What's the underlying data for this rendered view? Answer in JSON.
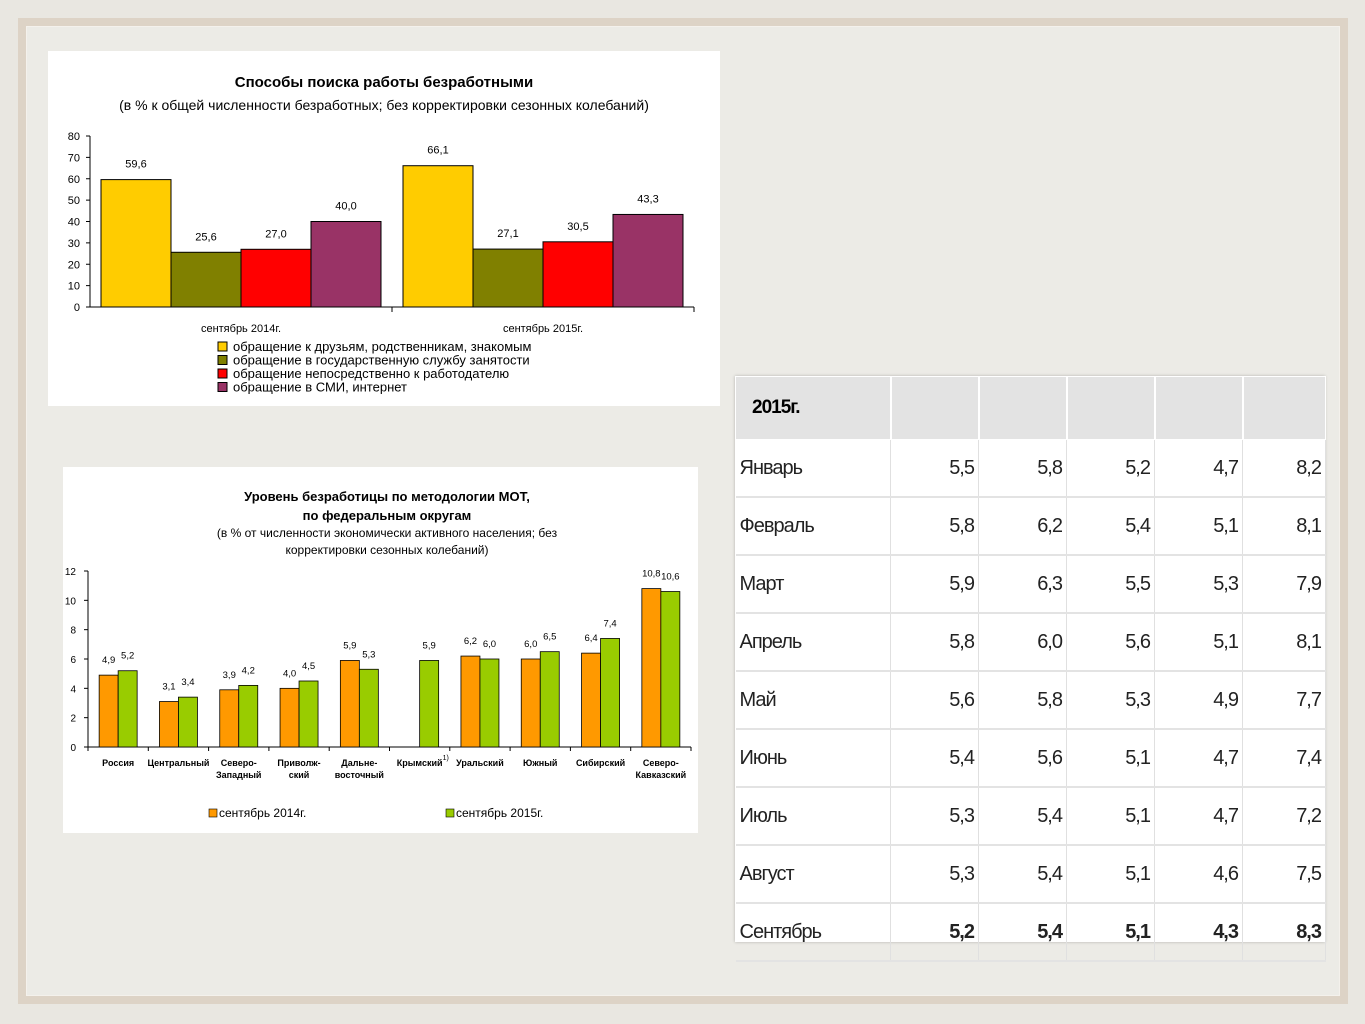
{
  "chart_data": [
    {
      "type": "bar",
      "title": "Способы поиска работы безработными",
      "subtitle": "(в % к общей численности безработных; без корректировки сезонных колебаний)",
      "categories": [
        "сентябрь 2014г.",
        "сентябрь 2015г."
      ],
      "ylim": [
        0,
        80
      ],
      "yticks": [
        0,
        10,
        20,
        30,
        40,
        50,
        60,
        70,
        80
      ],
      "legend_position": "bottom",
      "series": [
        {
          "name": "обращение к друзьям, родственникам, знакомым",
          "values": [
            59.6,
            66.1
          ],
          "labels": [
            "59,6",
            "66,1"
          ],
          "color": "#ffcc00"
        },
        {
          "name": "обращение в государственную службу занятости",
          "values": [
            25.6,
            27.1
          ],
          "labels": [
            "25,6",
            "27,1"
          ],
          "color": "#808000"
        },
        {
          "name": "обращение непосредственно к работодателю",
          "values": [
            27.0,
            30.5
          ],
          "labels": [
            "27,0",
            "30,5"
          ],
          "color": "#ff0000"
        },
        {
          "name": "обращение в СМИ, интернет",
          "values": [
            40.0,
            43.3
          ],
          "labels": [
            "40,0",
            "43,3"
          ],
          "color": "#993366"
        }
      ]
    },
    {
      "type": "bar",
      "title": "Уровень безработицы по методологии МОТ,",
      "title2": "по федеральным округам",
      "subtitle": "(в % от численности экономически активного населения; без",
      "subtitle2": "корректировки сезонных колебаний)",
      "categories": [
        "Россия",
        "Центральный",
        "Северо-|Западный",
        "Приволж-|ский",
        "Дальне-|восточный",
        "Крымский",
        "Уральский",
        "Южный",
        "Сибирский",
        "Северо-|Кавказский"
      ],
      "crimea_footnote": "1)",
      "ylim": [
        0,
        12
      ],
      "yticks": [
        0,
        2,
        4,
        6,
        8,
        10,
        12
      ],
      "legend_position": "bottom",
      "series": [
        {
          "name": "сентябрь 2014г.",
          "values": [
            4.9,
            3.1,
            3.9,
            4.0,
            5.9,
            null,
            6.2,
            6.0,
            6.4,
            10.8
          ],
          "labels": [
            "4,9",
            "3,1",
            "3,9",
            "4,0",
            "5,9",
            "",
            "6,2",
            "6,0",
            "6,4",
            "10,8"
          ],
          "color": "#ff9900"
        },
        {
          "name": "сентябрь 2015г.",
          "values": [
            5.2,
            3.4,
            4.2,
            4.5,
            5.3,
            5.9,
            6.0,
            6.5,
            7.4,
            10.6
          ],
          "labels": [
            "5,2",
            "3,4",
            "4,2",
            "4,5",
            "5,3",
            "5,9",
            "6,0",
            "6,5",
            "7,4",
            "10,6"
          ],
          "color": "#99cc00"
        }
      ]
    },
    {
      "type": "table",
      "header": "2015г.",
      "rows": [
        {
          "month": "Январь",
          "values": [
            "5,5",
            "5,8",
            "5,2",
            "4,7",
            "8,2"
          ]
        },
        {
          "month": "Февраль",
          "values": [
            "5,8",
            "6,2",
            "5,4",
            "5,1",
            "8,1"
          ]
        },
        {
          "month": "Март",
          "values": [
            "5,9",
            "6,3",
            "5,5",
            "5,3",
            "7,9"
          ]
        },
        {
          "month": "Апрель",
          "values": [
            "5,8",
            "6,0",
            "5,6",
            "5,1",
            "8,1"
          ]
        },
        {
          "month": "Май",
          "values": [
            "5,6",
            "5,8",
            "5,3",
            "4,9",
            "7,7"
          ]
        },
        {
          "month": "Июнь",
          "values": [
            "5,4",
            "5,6",
            "5,1",
            "4,7",
            "7,4"
          ]
        },
        {
          "month": "Июль",
          "values": [
            "5,3",
            "5,4",
            "5,1",
            "4,7",
            "7,2"
          ]
        },
        {
          "month": "Август",
          "values": [
            "5,3",
            "5,4",
            "5,1",
            "4,6",
            "7,5"
          ]
        },
        {
          "month": "Сентябрь",
          "values": [
            "5,2",
            "5,4",
            "5,1",
            "4,3",
            "8,3"
          ]
        }
      ]
    }
  ]
}
